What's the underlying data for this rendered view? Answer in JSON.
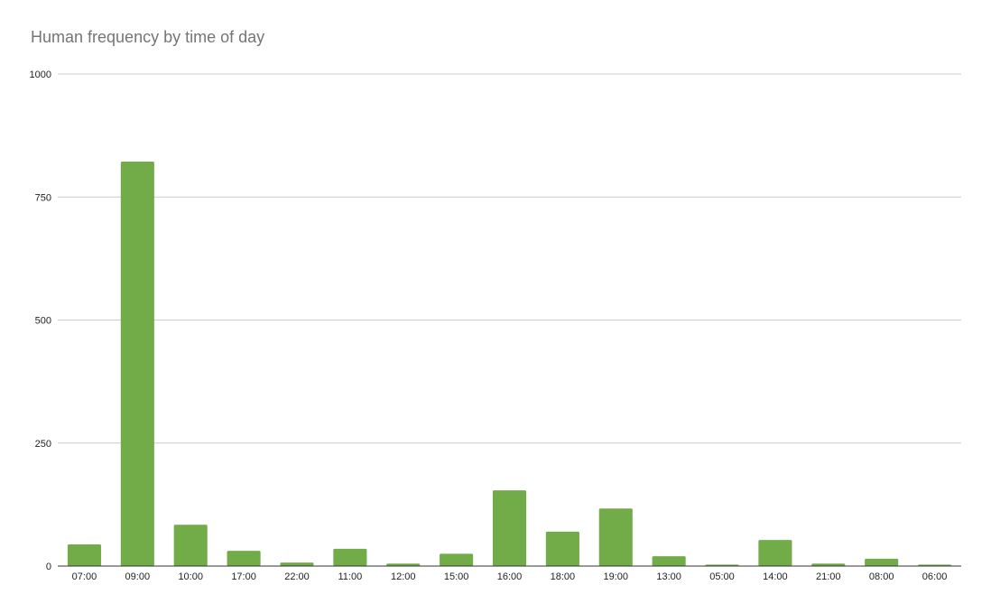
{
  "chart_data": {
    "type": "bar",
    "title": "Human frequency by time of day",
    "xlabel": "",
    "ylabel": "",
    "categories": [
      "07:00",
      "09:00",
      "10:00",
      "17:00",
      "22:00",
      "11:00",
      "12:00",
      "15:00",
      "16:00",
      "18:00",
      "19:00",
      "13:00",
      "05:00",
      "14:00",
      "21:00",
      "08:00",
      "06:00"
    ],
    "series": [
      {
        "values": [
          44,
          822,
          84,
          31,
          7,
          35,
          5,
          25,
          154,
          70,
          117,
          20,
          3,
          53,
          5,
          15,
          3
        ]
      }
    ],
    "ylim": [
      0,
      1000
    ],
    "yticks": [
      0,
      250,
      500,
      750,
      1000
    ],
    "grid": true,
    "legend": "none",
    "colors": {
      "bar": "#72ac48",
      "grid": "#cccccc",
      "axis": "#333333",
      "title": "#757575"
    }
  }
}
